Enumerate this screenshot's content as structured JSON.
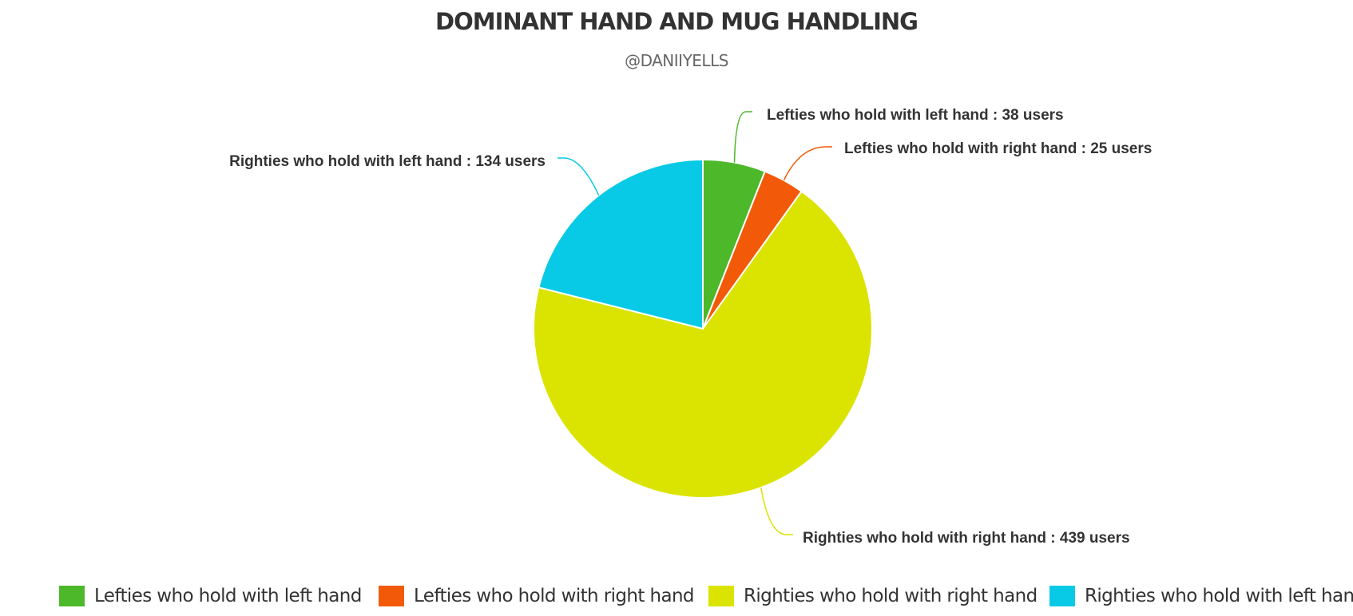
{
  "chart_data": {
    "type": "pie",
    "title": "DOMINANT HAND AND MUG HANDLING",
    "subtitle": "@DANIIYELLS",
    "slices": [
      {
        "label": "Lefties who hold with left hand",
        "value": 38,
        "data_label": "Lefties who hold with left hand : 38 users",
        "color": "#4cb82a"
      },
      {
        "label": "Lefties who hold with right hand",
        "value": 25,
        "data_label": "Lefties who hold with right hand : 25 users",
        "color": "#f25a09"
      },
      {
        "label": "Righties who hold with right hand",
        "value": 439,
        "data_label": "Righties who hold with right hand : 439 users",
        "color": "#dbe300"
      },
      {
        "label": "Righties who hold with left hand",
        "value": 134,
        "data_label": "Righties who hold with left hand : 134 users",
        "color": "#08cae6"
      }
    ],
    "legend_position": "bottom"
  }
}
